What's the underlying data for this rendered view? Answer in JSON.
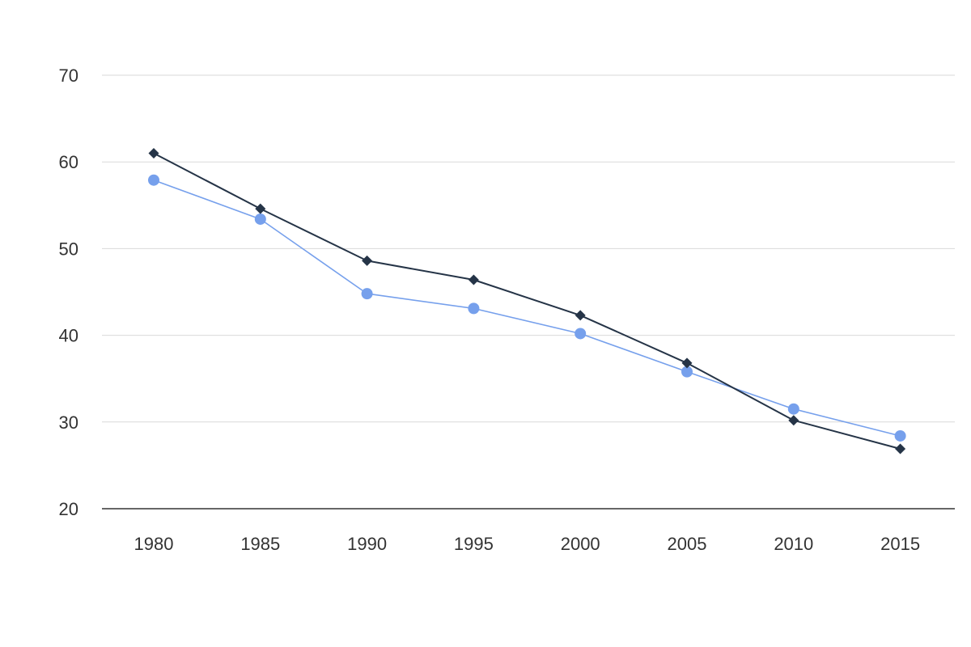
{
  "chart_data": {
    "type": "line",
    "title": "",
    "xlabel": "",
    "ylabel": "",
    "categories": [
      "1980",
      "1985",
      "1990",
      "1995",
      "2000",
      "2005",
      "2010",
      "2015"
    ],
    "ylim": [
      20,
      70
    ],
    "yticks": [
      20,
      30,
      40,
      50,
      60,
      70
    ],
    "grid": true,
    "legend": "none",
    "series": [
      {
        "marker": "diamond",
        "color": "#253447",
        "values": [
          61.0,
          54.6,
          48.6,
          46.4,
          42.3,
          36.8,
          30.2,
          26.9
        ]
      },
      {
        "marker": "circle",
        "color": "#76a0ec",
        "values": [
          57.9,
          53.4,
          44.8,
          43.1,
          40.2,
          35.8,
          31.5,
          28.4
        ]
      }
    ]
  }
}
